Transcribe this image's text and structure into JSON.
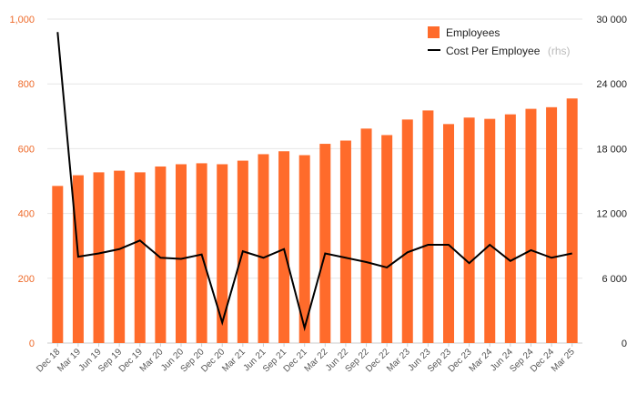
{
  "chart_data": {
    "type": "bar+line",
    "categories": [
      "Dec 18",
      "Mar 19",
      "Jun 19",
      "Sep 19",
      "Dec 19",
      "Mar 20",
      "Jun 20",
      "Sep 20",
      "Dec 20",
      "Mar 21",
      "Jun 21",
      "Sep 21",
      "Dec 21",
      "Mar 22",
      "Jun 22",
      "Sep 22",
      "Dec 22",
      "Mar 23",
      "Jun 23",
      "Sep 23",
      "Dec 23",
      "Mar 24",
      "Jun 24",
      "Sep 24",
      "Dec 24",
      "Mar 25"
    ],
    "series": [
      {
        "name": "Employees",
        "type": "bar",
        "axis": "left",
        "color": "#ff6b2b",
        "values": [
          485,
          518,
          527,
          532,
          527,
          545,
          552,
          555,
          552,
          563,
          583,
          592,
          580,
          615,
          625,
          662,
          642,
          690,
          718,
          676,
          696,
          692,
          706,
          723,
          728,
          755
        ]
      },
      {
        "name": "Cost Per Employee",
        "name_suffix": "(rhs)",
        "type": "line",
        "axis": "right",
        "color": "#000000",
        "values": [
          28800,
          8000,
          8300,
          8700,
          9500,
          7900,
          7800,
          8200,
          1900,
          8500,
          7900,
          8700,
          1400,
          8300,
          7900,
          7500,
          7000,
          8400,
          9100,
          9100,
          7400,
          9100,
          7600,
          8600,
          7900,
          8300
        ]
      }
    ],
    "ylim_left": [
      0,
      1000
    ],
    "yticks_left": [
      "0",
      "200",
      "400",
      "600",
      "800",
      "1,000"
    ],
    "ylim_right": [
      0,
      30000
    ],
    "yticks_right": [
      "0",
      "6 000",
      "12 000",
      "18 000",
      "24 000",
      "30 000"
    ],
    "grid": true,
    "legend_position": "top-right"
  }
}
